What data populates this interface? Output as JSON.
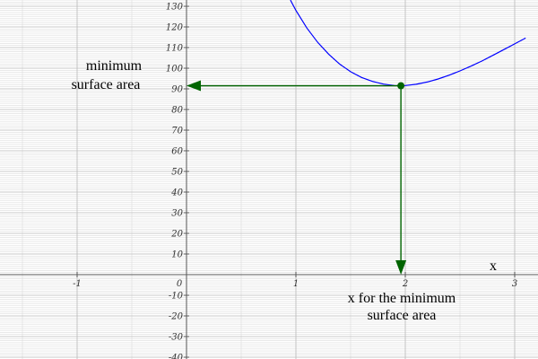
{
  "chart_data": {
    "type": "line",
    "title": "",
    "xlabel": "x",
    "ylabel": "",
    "xlim": [
      -1.4,
      3.1
    ],
    "ylim": [
      -40,
      133
    ],
    "grid": true,
    "x_ticks": [
      "-1",
      "0",
      "1",
      "2",
      "3"
    ],
    "y_ticks": [
      "-40",
      "-30",
      "-20",
      "-10",
      "10",
      "20",
      "30",
      "40",
      "50",
      "60",
      "70",
      "80",
      "90",
      "100",
      "110",
      "120",
      "130"
    ],
    "series": [
      {
        "color": "#0000ff",
        "x": [
          0.95,
          1.0,
          1.1,
          1.2,
          1.3,
          1.4,
          1.5,
          1.6,
          1.7,
          1.8,
          1.9,
          1.96,
          2.0,
          2.1,
          2.2,
          2.3,
          2.4,
          2.5,
          2.6,
          2.7,
          2.8,
          2.9,
          3.0,
          3.1
        ],
        "y": [
          133,
          128.0,
          119.5,
          112.5,
          106.8,
          102.0,
          98.3,
          95.5,
          93.6,
          92.3,
          91.6,
          91.5,
          91.6,
          92.2,
          93.3,
          94.8,
          96.6,
          98.7,
          101.0,
          103.5,
          106.2,
          109.0,
          111.8,
          114.6
        ]
      }
    ],
    "minimum_point": {
      "x": 1.96,
      "y": 91.5,
      "color": "#006400"
    },
    "annotations": {
      "minimum_area": [
        "minimum",
        "surface area"
      ],
      "x_for_minimum": [
        "x for the minimum",
        "surface area"
      ]
    }
  }
}
